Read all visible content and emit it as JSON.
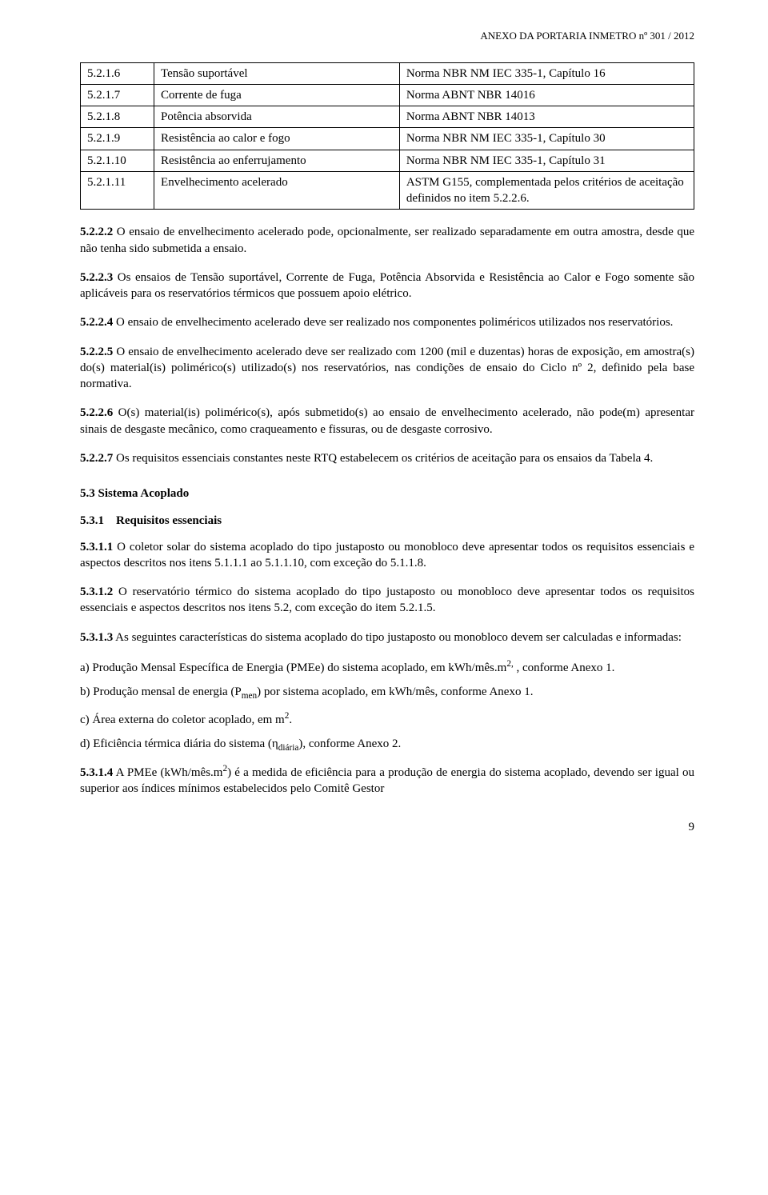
{
  "header": "ANEXO DA PORTARIA INMETRO nº 301 / 2012",
  "table": {
    "rows": [
      {
        "c1": "5.2.1.6",
        "c2": "Tensão suportável",
        "c3": "Norma NBR NM IEC 335-1, Capítulo 16"
      },
      {
        "c1": "5.2.1.7",
        "c2": "Corrente de fuga",
        "c3": "Norma ABNT NBR 14016"
      },
      {
        "c1": "5.2.1.8",
        "c2": "Potência absorvida",
        "c3": "Norma ABNT NBR 14013"
      },
      {
        "c1": "5.2.1.9",
        "c2": "Resistência ao calor e fogo",
        "c3": "Norma NBR NM IEC 335-1, Capítulo 30"
      },
      {
        "c1": "5.2.1.10",
        "c2": "Resistência ao enferrujamento",
        "c3": "Norma NBR NM IEC 335-1, Capítulo 31"
      },
      {
        "c1": "5.2.1.11",
        "c2": "Envelhecimento acelerado",
        "c3": "ASTM G155, complementada pelos critérios de aceitação definidos no item 5.2.2.6."
      }
    ]
  },
  "paras": {
    "p5222_lead": "5.2.2.2",
    "p5222_body": " O ensaio de envelhecimento acelerado pode, opcionalmente, ser realizado separadamente em outra amostra, desde que não tenha sido submetida a ensaio.",
    "p5223_lead": "5.2.2.3",
    "p5223_body": " Os ensaios de Tensão suportável, Corrente de Fuga, Potência Absorvida e Resistência ao Calor e Fogo somente são aplicáveis para os reservatórios térmicos que possuem apoio elétrico.",
    "p5224_lead": "5.2.2.4",
    "p5224_body": " O ensaio de envelhecimento acelerado deve ser realizado nos componentes poliméricos utilizados nos reservatórios.",
    "p5225_lead": "5.2.2.5",
    "p5225_body": " O ensaio de envelhecimento acelerado deve ser realizado com 1200 (mil e duzentas) horas de exposição, em amostra(s) do(s) material(is) polimérico(s) utilizado(s) nos reservatórios, nas condições de ensaio do Ciclo nº 2, definido pela base normativa.",
    "p5226_lead": "5.2.2.6",
    "p5226_body": " O(s) material(is) polimérico(s), após submetido(s) ao ensaio de envelhecimento acelerado, não pode(m) apresentar sinais de desgaste mecânico, como craqueamento e fissuras, ou de desgaste corrosivo.",
    "p5227_lead": "5.2.2.7",
    "p5227_body": " Os requisitos essenciais constantes neste RTQ estabelecem os critérios de aceitação para os ensaios da Tabela 4."
  },
  "sec53": {
    "title": "5.3  Sistema Acoplado",
    "sub": "5.3.1 Requisitos essenciais",
    "p5311_lead": "5.3.1.1",
    "p5311_body": " O coletor solar do sistema acoplado do tipo justaposto ou monobloco deve apresentar todos os requisitos essenciais e aspectos descritos nos itens 5.1.1.1 ao 5.1.1.10, com exceção do 5.1.1.8.",
    "p5312_lead": "5.3.1.2",
    "p5312_body": " O reservatório térmico do sistema acoplado do tipo justaposto ou monobloco deve apresentar todos os requisitos essenciais e aspectos descritos nos itens 5.2, com exceção do item 5.2.1.5.",
    "p5313_lead": "5.3.1.3",
    "p5313_body": " As seguintes características do sistema acoplado do tipo justaposto ou monobloco devem ser calculadas e informadas:",
    "li_a_pre": "a)  Produção Mensal Específica de Energia (PMEe) do sistema acoplado, em kWh/mês.m",
    "li_a_sup": "2,",
    "li_a_post": " , conforme Anexo 1.",
    "li_b_pre": "b)  Produção mensal de energia (P",
    "li_b_sub": "men",
    "li_b_post": ") por sistema acoplado, em kWh/mês, conforme Anexo 1.",
    "li_c_pre": "c)  Área externa do coletor acoplado, em m",
    "li_c_sup": "2",
    "li_c_post": ".",
    "li_d_pre": "d)  Eficiência térmica diária do sistema (η",
    "li_d_sub": "diária",
    "li_d_post": "), conforme Anexo 2.",
    "p5314_lead": "5.3.1.4",
    "p5314_mid1": "   A PMEe (kWh/mês.m",
    "p5314_sup": "2",
    "p5314_body": ") é a medida de eficiência para a produção de energia do sistema acoplado, devendo ser igual ou superior aos índices mínimos estabelecidos pelo Comitê Gestor"
  },
  "pagenum": "9"
}
